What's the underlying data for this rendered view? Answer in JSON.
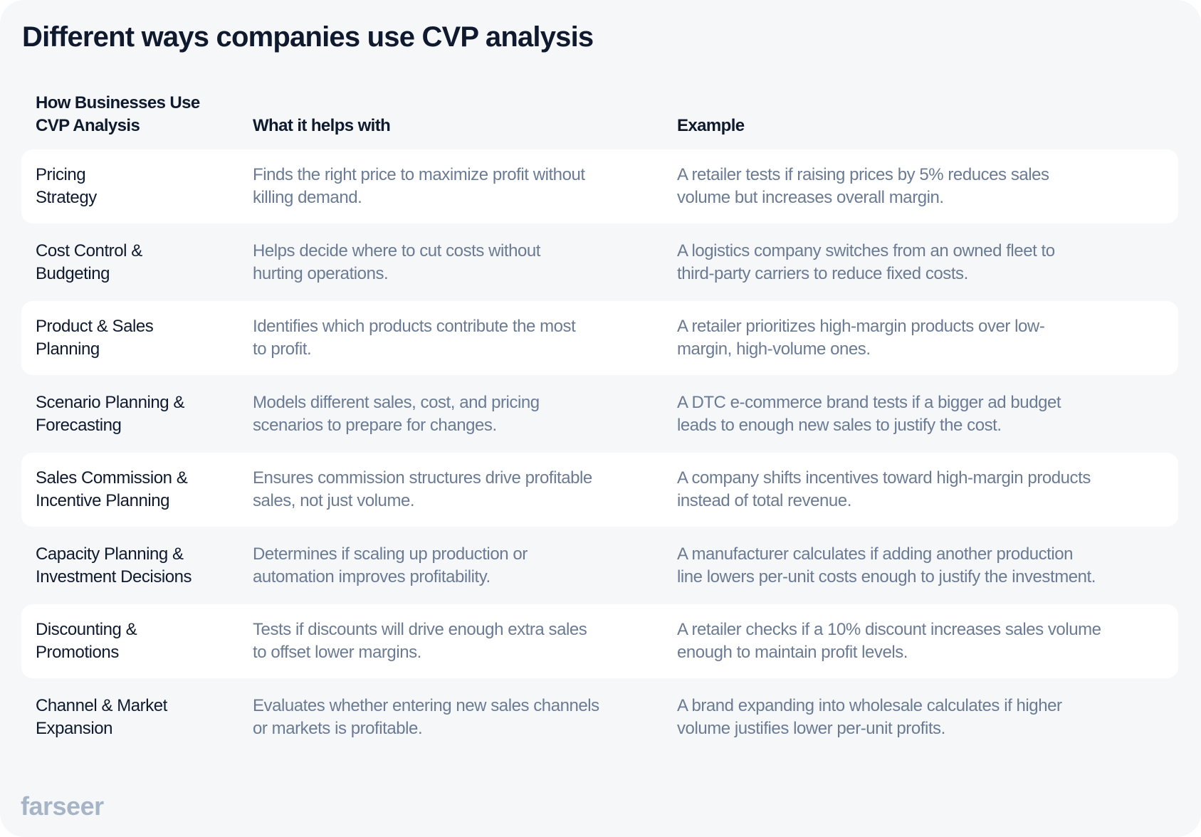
{
  "title": "Different ways companies use CVP analysis",
  "headers": {
    "col1": [
      "How Businesses Use",
      "CVP Analysis"
    ],
    "col2": "What it helps with",
    "col3": "Example"
  },
  "rows": [
    {
      "use": [
        "Pricing",
        "Strategy"
      ],
      "helps": [
        "Finds the right price to maximize profit without",
        "killing demand."
      ],
      "example": [
        "A retailer tests if raising prices by 5% reduces sales",
        "volume but increases overall margin."
      ]
    },
    {
      "use": [
        "Cost Control &",
        "Budgeting"
      ],
      "helps": [
        "Helps decide where to cut costs without",
        "hurting operations."
      ],
      "example": [
        "A logistics company switches from an owned fleet to",
        "third-party carriers to reduce fixed costs."
      ]
    },
    {
      "use": [
        "Product & Sales",
        "Planning"
      ],
      "helps": [
        "Identifies which products contribute the most",
        "to profit."
      ],
      "example": [
        "A retailer prioritizes high-margin products over low-",
        "margin, high-volume ones."
      ]
    },
    {
      "use": [
        "Scenario Planning &",
        "Forecasting"
      ],
      "helps": [
        "Models different sales, cost, and pricing",
        "scenarios to prepare for changes."
      ],
      "example": [
        "A DTC e-commerce brand tests if a bigger ad budget",
        "leads to enough new sales to justify the cost."
      ]
    },
    {
      "use": [
        "Sales Commission &",
        "Incentive Planning"
      ],
      "helps": [
        "Ensures commission structures drive profitable",
        "sales, not just volume."
      ],
      "example": [
        "A company shifts incentives toward high-margin products",
        "instead of total revenue."
      ]
    },
    {
      "use": [
        "Capacity Planning &",
        "Investment Decisions"
      ],
      "helps": [
        "Determines if scaling up production or",
        "automation improves profitability."
      ],
      "example": [
        "A manufacturer calculates if adding another production",
        "line lowers per-unit costs enough to justify the investment."
      ]
    },
    {
      "use": [
        "Discounting &",
        "Promotions"
      ],
      "helps": [
        "Tests if discounts will drive enough extra sales",
        "to offset lower margins."
      ],
      "example": [
        "A retailer checks if a 10% discount increases sales volume",
        "enough to maintain profit levels."
      ]
    },
    {
      "use": [
        "Channel & Market",
        "Expansion"
      ],
      "helps": [
        "Evaluates whether entering new sales channels",
        "or markets is profitable."
      ],
      "example": [
        "A brand expanding into wholesale calculates if higher",
        "volume justifies lower per-unit profits."
      ]
    }
  ],
  "logo": "farseer",
  "colors": {
    "background": "#f5f7f9",
    "row_alt": "#ffffff",
    "heading": "#0f1a2e",
    "body_text": "#6b7b93",
    "logo": "#a6b4c7"
  }
}
